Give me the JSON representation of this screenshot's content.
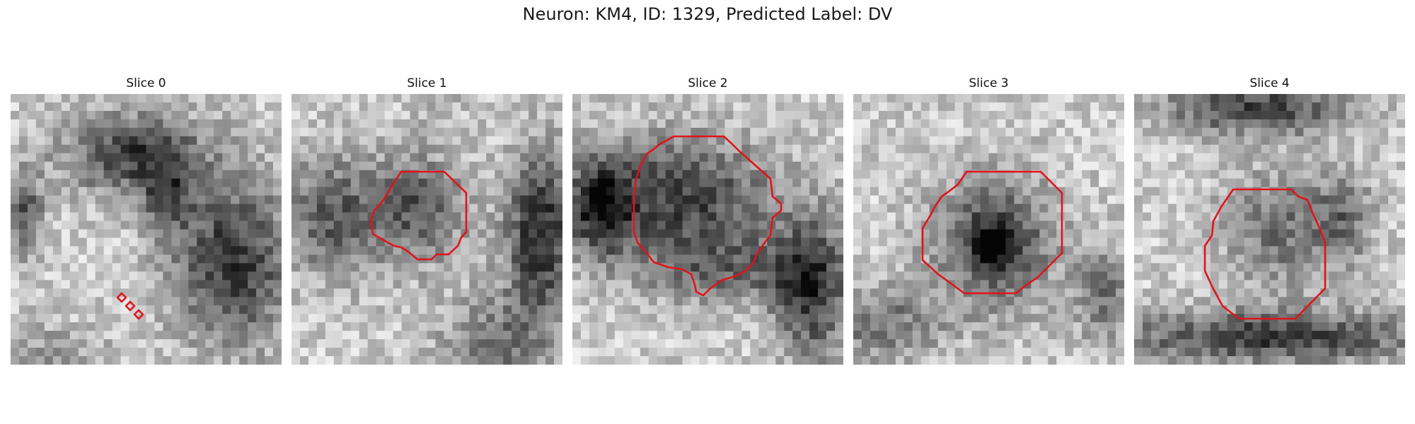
{
  "figure": {
    "title": "Neuron: KM4, ID: 1329, Predicted Label: DV",
    "panels": [
      {
        "label": "Slice 0",
        "seed": 11,
        "blobs": [
          [
            0.45,
            0.22,
            0.26,
            0.15,
            -0.55
          ],
          [
            0.58,
            0.38,
            0.1,
            0.14,
            -0.35
          ],
          [
            0.82,
            0.62,
            0.22,
            0.3,
            -0.6
          ],
          [
            0.05,
            0.45,
            0.07,
            0.16,
            -0.45
          ],
          [
            0.15,
            0.95,
            0.2,
            0.1,
            -0.2
          ]
        ]
      },
      {
        "label": "Slice 1",
        "seed": 23,
        "blobs": [
          [
            0.15,
            0.45,
            0.18,
            0.22,
            -0.45
          ],
          [
            0.47,
            0.42,
            0.17,
            0.2,
            -0.45
          ],
          [
            0.92,
            0.52,
            0.13,
            0.3,
            -0.65
          ],
          [
            0.75,
            0.95,
            0.2,
            0.2,
            -0.35
          ],
          [
            0.55,
            0.05,
            0.1,
            0.08,
            -0.1
          ]
        ]
      },
      {
        "label": "Slice 2",
        "seed": 37,
        "blobs": [
          [
            0.4,
            0.38,
            0.35,
            0.22,
            -0.55
          ],
          [
            0.1,
            0.42,
            0.12,
            0.18,
            -0.55
          ],
          [
            0.88,
            0.72,
            0.14,
            0.26,
            -0.6
          ],
          [
            0.55,
            0.65,
            0.3,
            0.12,
            -0.35
          ]
        ]
      },
      {
        "label": "Slice 3",
        "seed": 49,
        "blobs": [
          [
            0.52,
            0.55,
            0.22,
            0.24,
            -0.55
          ],
          [
            0.52,
            0.55,
            0.08,
            0.08,
            -0.35
          ],
          [
            0.1,
            0.85,
            0.22,
            0.14,
            -0.35
          ],
          [
            0.92,
            0.75,
            0.1,
            0.18,
            -0.35
          ]
        ]
      },
      {
        "label": "Slice 4",
        "seed": 61,
        "blobs": [
          [
            0.45,
            0.05,
            0.35,
            0.1,
            -0.55
          ],
          [
            0.5,
            0.9,
            0.6,
            0.1,
            -0.55
          ],
          [
            0.55,
            0.5,
            0.22,
            0.22,
            -0.35
          ],
          [
            0.78,
            0.45,
            0.1,
            0.16,
            -0.3
          ]
        ]
      }
    ]
  },
  "colors": {
    "contour": "#e0141a"
  }
}
